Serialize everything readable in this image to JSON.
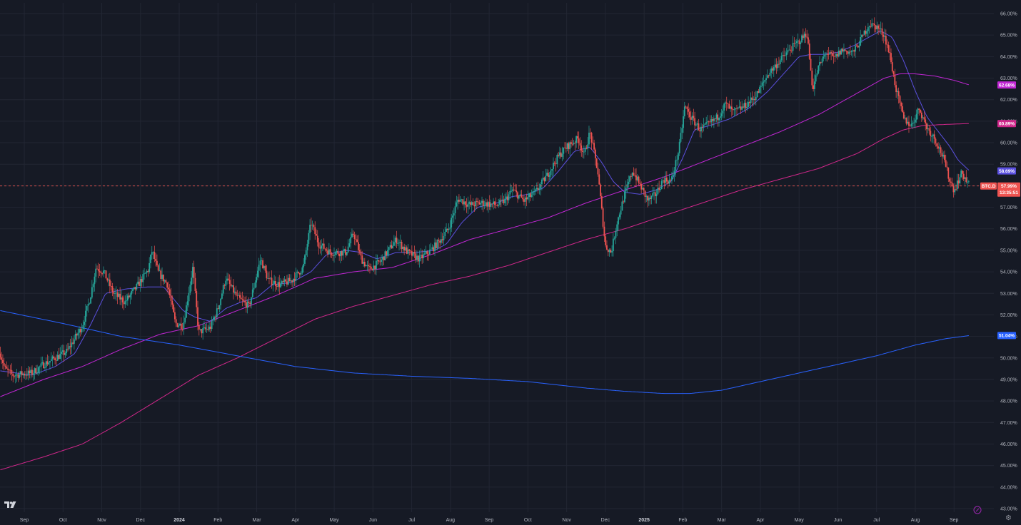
{
  "colors": {
    "background": "#161a25",
    "grid": "#222633",
    "up": "#26a69a",
    "down": "#ef5350",
    "ma_fast": "#5b50e0",
    "ma_mid": "#c026d3",
    "ma_slow": "#d1278b",
    "ma_long": "#2962ff",
    "last_price_line": "#ef5350",
    "axis_text": "#b2b5be"
  },
  "icons": {
    "logo": "tradingview-logo-icon",
    "settings": "gear-icon",
    "auto_scale": "magnet-icon"
  },
  "chart_data": {
    "type": "line",
    "title": "",
    "symbol_badge": "BTC.D",
    "countdown_badge": "13:35:51",
    "y_unit": "%",
    "ylim": [
      43.0,
      66.0
    ],
    "y_ticks": [
      "43.00%",
      "44.00%",
      "45.00%",
      "46.00%",
      "47.00%",
      "48.00%",
      "49.00%",
      "50.00%",
      "51.00%",
      "52.00%",
      "53.00%",
      "54.00%",
      "55.00%",
      "56.00%",
      "57.00%",
      "58.00%",
      "59.00%",
      "60.00%",
      "61.00%",
      "62.00%",
      "63.00%",
      "64.00%",
      "65.00%",
      "66.00%"
    ],
    "x_ticks": [
      {
        "label": "Sep",
        "month": 0
      },
      {
        "label": "Oct",
        "month": 1
      },
      {
        "label": "Nov",
        "month": 2
      },
      {
        "label": "Dec",
        "month": 3
      },
      {
        "label": "2024",
        "month": 4,
        "bold": true
      },
      {
        "label": "Feb",
        "month": 5
      },
      {
        "label": "Mar",
        "month": 6
      },
      {
        "label": "Apr",
        "month": 7
      },
      {
        "label": "May",
        "month": 8
      },
      {
        "label": "Jun",
        "month": 9
      },
      {
        "label": "Jul",
        "month": 10
      },
      {
        "label": "Aug",
        "month": 11
      },
      {
        "label": "Sep",
        "month": 12
      },
      {
        "label": "Oct",
        "month": 13
      },
      {
        "label": "Nov",
        "month": 14
      },
      {
        "label": "Dec",
        "month": 15
      },
      {
        "label": "2025",
        "month": 16,
        "bold": true
      },
      {
        "label": "Feb",
        "month": 17
      },
      {
        "label": "Mar",
        "month": 18
      },
      {
        "label": "Apr",
        "month": 19
      },
      {
        "label": "May",
        "month": 20
      },
      {
        "label": "Jun",
        "month": 21
      },
      {
        "label": "Jul",
        "month": 22
      },
      {
        "label": "Aug",
        "month": 23
      },
      {
        "label": "Sep",
        "month": 24
      }
    ],
    "xlim_months": [
      -0.62,
      24.4
    ],
    "price_close_keypoints": [
      [
        -0.62,
        50.2
      ],
      [
        -0.5,
        49.5
      ],
      [
        -0.3,
        49.2
      ],
      [
        0.2,
        49.3
      ],
      [
        0.5,
        49.7
      ],
      [
        0.8,
        50.0
      ],
      [
        1.1,
        50.3
      ],
      [
        1.5,
        51.5
      ],
      [
        1.7,
        52.8
      ],
      [
        1.85,
        54.2
      ],
      [
        2.05,
        54.0
      ],
      [
        2.3,
        53.0
      ],
      [
        2.6,
        52.6
      ],
      [
        2.9,
        53.3
      ],
      [
        3.2,
        54.1
      ],
      [
        3.3,
        55.0
      ],
      [
        3.45,
        54.0
      ],
      [
        3.7,
        53.4
      ],
      [
        3.9,
        51.6
      ],
      [
        4.1,
        51.5
      ],
      [
        4.35,
        54.2
      ],
      [
        4.5,
        51.2
      ],
      [
        4.8,
        51.4
      ],
      [
        5.0,
        52.3
      ],
      [
        5.2,
        53.7
      ],
      [
        5.5,
        52.8
      ],
      [
        5.8,
        52.4
      ],
      [
        6.1,
        54.6
      ],
      [
        6.3,
        53.6
      ],
      [
        6.6,
        53.4
      ],
      [
        6.9,
        53.6
      ],
      [
        7.2,
        54.2
      ],
      [
        7.4,
        56.3
      ],
      [
        7.6,
        55.3
      ],
      [
        7.9,
        54.9
      ],
      [
        8.3,
        54.9
      ],
      [
        8.5,
        55.8
      ],
      [
        8.7,
        54.6
      ],
      [
        8.9,
        54.1
      ],
      [
        9.2,
        54.5
      ],
      [
        9.6,
        55.5
      ],
      [
        9.9,
        54.9
      ],
      [
        10.2,
        54.6
      ],
      [
        10.5,
        55.0
      ],
      [
        10.7,
        55.4
      ],
      [
        10.95,
        56.0
      ],
      [
        11.2,
        57.4
      ],
      [
        11.5,
        57.1
      ],
      [
        11.8,
        57.2
      ],
      [
        12.2,
        57.1
      ],
      [
        12.4,
        57.3
      ],
      [
        12.6,
        57.8
      ],
      [
        12.9,
        57.3
      ],
      [
        13.2,
        57.7
      ],
      [
        13.5,
        58.5
      ],
      [
        13.8,
        59.4
      ],
      [
        14.0,
        59.8
      ],
      [
        14.3,
        60.2
      ],
      [
        14.45,
        59.4
      ],
      [
        14.6,
        60.5
      ],
      [
        14.8,
        58.7
      ],
      [
        15.0,
        55.2
      ],
      [
        15.15,
        54.9
      ],
      [
        15.3,
        56.3
      ],
      [
        15.5,
        57.6
      ],
      [
        15.7,
        58.7
      ],
      [
        15.9,
        58.0
      ],
      [
        16.1,
        57.3
      ],
      [
        16.3,
        57.6
      ],
      [
        16.5,
        58.3
      ],
      [
        16.7,
        58.2
      ],
      [
        16.9,
        59.7
      ],
      [
        17.05,
        61.7
      ],
      [
        17.2,
        61.2
      ],
      [
        17.45,
        60.6
      ],
      [
        17.7,
        60.9
      ],
      [
        17.9,
        61.2
      ],
      [
        18.1,
        61.8
      ],
      [
        18.3,
        61.4
      ],
      [
        18.6,
        61.7
      ],
      [
        18.9,
        62.2
      ],
      [
        19.2,
        63.2
      ],
      [
        19.5,
        63.8
      ],
      [
        19.8,
        64.4
      ],
      [
        20.05,
        64.8
      ],
      [
        20.2,
        65.1
      ],
      [
        20.35,
        62.5
      ],
      [
        20.5,
        63.5
      ],
      [
        20.7,
        64.2
      ],
      [
        20.9,
        63.9
      ],
      [
        21.1,
        64.3
      ],
      [
        21.4,
        64.2
      ],
      [
        21.6,
        64.8
      ],
      [
        21.8,
        65.5
      ],
      [
        22.0,
        65.4
      ],
      [
        22.2,
        65.0
      ],
      [
        22.35,
        64.0
      ],
      [
        22.5,
        62.5
      ],
      [
        22.7,
        61.1
      ],
      [
        22.9,
        60.8
      ],
      [
        23.1,
        61.6
      ],
      [
        23.3,
        60.7
      ],
      [
        23.5,
        60.2
      ],
      [
        23.7,
        59.4
      ],
      [
        23.9,
        58.2
      ],
      [
        24.0,
        57.8
      ],
      [
        24.2,
        58.6
      ],
      [
        24.4,
        57.99
      ]
    ],
    "series": [
      {
        "name": "",
        "role": "ma_fast",
        "last_value": 58.69,
        "badge": "58.69%",
        "keypoints": [
          [
            -0.62,
            49.4
          ],
          [
            0.2,
            49.2
          ],
          [
            0.8,
            49.6
          ],
          [
            1.3,
            50.2
          ],
          [
            1.7,
            51.5
          ],
          [
            2.1,
            53.0
          ],
          [
            2.6,
            53.2
          ],
          [
            3.2,
            53.3
          ],
          [
            3.6,
            53.3
          ],
          [
            4.1,
            52.2
          ],
          [
            4.4,
            51.9
          ],
          [
            4.8,
            51.7
          ],
          [
            5.2,
            52.3
          ],
          [
            5.6,
            52.6
          ],
          [
            6.0,
            52.8
          ],
          [
            6.4,
            53.4
          ],
          [
            6.9,
            53.5
          ],
          [
            7.4,
            54.0
          ],
          [
            7.8,
            54.8
          ],
          [
            8.3,
            55.0
          ],
          [
            8.7,
            54.9
          ],
          [
            9.1,
            54.6
          ],
          [
            9.6,
            54.9
          ],
          [
            10.1,
            54.9
          ],
          [
            10.6,
            55.0
          ],
          [
            10.9,
            55.3
          ],
          [
            11.3,
            56.3
          ],
          [
            11.7,
            57.0
          ],
          [
            12.2,
            57.2
          ],
          [
            12.6,
            57.5
          ],
          [
            13.0,
            57.6
          ],
          [
            13.4,
            57.9
          ],
          [
            13.8,
            58.7
          ],
          [
            14.2,
            59.6
          ],
          [
            14.6,
            59.8
          ],
          [
            14.9,
            59.1
          ],
          [
            15.2,
            58.2
          ],
          [
            15.5,
            57.7
          ],
          [
            15.9,
            57.6
          ],
          [
            16.3,
            57.8
          ],
          [
            16.7,
            58.2
          ],
          [
            17.0,
            59.3
          ],
          [
            17.3,
            60.6
          ],
          [
            17.7,
            60.8
          ],
          [
            18.2,
            61.1
          ],
          [
            18.7,
            61.6
          ],
          [
            19.2,
            62.4
          ],
          [
            19.6,
            63.2
          ],
          [
            20.0,
            64.0
          ],
          [
            20.3,
            64.1
          ],
          [
            20.6,
            64.1
          ],
          [
            21.0,
            64.2
          ],
          [
            21.4,
            64.5
          ],
          [
            21.8,
            64.9
          ],
          [
            22.1,
            65.2
          ],
          [
            22.4,
            64.9
          ],
          [
            22.7,
            63.8
          ],
          [
            23.0,
            62.4
          ],
          [
            23.3,
            61.2
          ],
          [
            23.6,
            60.5
          ],
          [
            23.9,
            59.8
          ],
          [
            24.1,
            59.2
          ],
          [
            24.4,
            58.69
          ]
        ]
      },
      {
        "name": "",
        "role": "ma_mid",
        "last_value": 62.68,
        "badge": "62.68%",
        "keypoints": [
          [
            -0.62,
            48.2
          ],
          [
            0.5,
            49.0
          ],
          [
            1.5,
            49.6
          ],
          [
            2.5,
            50.4
          ],
          [
            3.5,
            51.1
          ],
          [
            4.5,
            51.5
          ],
          [
            5.5,
            52.2
          ],
          [
            6.5,
            52.9
          ],
          [
            7.5,
            53.7
          ],
          [
            8.5,
            54.0
          ],
          [
            9.5,
            54.2
          ],
          [
            10.5,
            54.8
          ],
          [
            11.5,
            55.5
          ],
          [
            12.5,
            56.0
          ],
          [
            13.5,
            56.5
          ],
          [
            14.5,
            57.2
          ],
          [
            15.5,
            57.8
          ],
          [
            16.5,
            58.4
          ],
          [
            17.5,
            59.1
          ],
          [
            18.5,
            59.8
          ],
          [
            19.5,
            60.5
          ],
          [
            20.5,
            61.3
          ],
          [
            21.5,
            62.3
          ],
          [
            22.2,
            63.0
          ],
          [
            22.6,
            63.2
          ],
          [
            23.0,
            63.2
          ],
          [
            23.5,
            63.1
          ],
          [
            24.0,
            62.9
          ],
          [
            24.4,
            62.68
          ]
        ]
      },
      {
        "name": "",
        "role": "ma_slow",
        "last_value": 60.89,
        "badge": "60.89%",
        "keypoints": [
          [
            -0.62,
            44.8
          ],
          [
            0.5,
            45.4
          ],
          [
            1.5,
            46.0
          ],
          [
            2.5,
            47.0
          ],
          [
            3.5,
            48.1
          ],
          [
            4.5,
            49.2
          ],
          [
            5.5,
            50.0
          ],
          [
            6.5,
            50.9
          ],
          [
            7.5,
            51.8
          ],
          [
            8.5,
            52.4
          ],
          [
            9.5,
            52.9
          ],
          [
            10.5,
            53.4
          ],
          [
            11.5,
            53.8
          ],
          [
            12.5,
            54.3
          ],
          [
            13.5,
            54.9
          ],
          [
            14.5,
            55.5
          ],
          [
            15.5,
            56.0
          ],
          [
            16.5,
            56.6
          ],
          [
            17.5,
            57.2
          ],
          [
            18.5,
            57.8
          ],
          [
            19.5,
            58.3
          ],
          [
            20.5,
            58.8
          ],
          [
            21.5,
            59.5
          ],
          [
            22.2,
            60.2
          ],
          [
            22.7,
            60.6
          ],
          [
            23.2,
            60.8
          ],
          [
            23.8,
            60.85
          ],
          [
            24.4,
            60.89
          ]
        ]
      },
      {
        "name": "",
        "role": "ma_long",
        "last_value": 51.04,
        "badge": "51.04%",
        "keypoints": [
          [
            -0.62,
            52.2
          ],
          [
            1.0,
            51.6
          ],
          [
            2.5,
            51.0
          ],
          [
            4.0,
            50.6
          ],
          [
            5.5,
            50.1
          ],
          [
            7.0,
            49.6
          ],
          [
            8.5,
            49.3
          ],
          [
            10.0,
            49.15
          ],
          [
            11.5,
            49.05
          ],
          [
            13.0,
            48.9
          ],
          [
            14.5,
            48.6
          ],
          [
            15.5,
            48.45
          ],
          [
            16.5,
            48.35
          ],
          [
            17.2,
            48.35
          ],
          [
            18.0,
            48.5
          ],
          [
            19.0,
            48.9
          ],
          [
            20.0,
            49.3
          ],
          [
            21.0,
            49.7
          ],
          [
            22.0,
            50.1
          ],
          [
            23.0,
            50.6
          ],
          [
            23.8,
            50.9
          ],
          [
            24.4,
            51.04
          ]
        ]
      }
    ],
    "last_price": 57.99,
    "last_price_badge": "57.99%",
    "grid": true,
    "legend": "none"
  }
}
